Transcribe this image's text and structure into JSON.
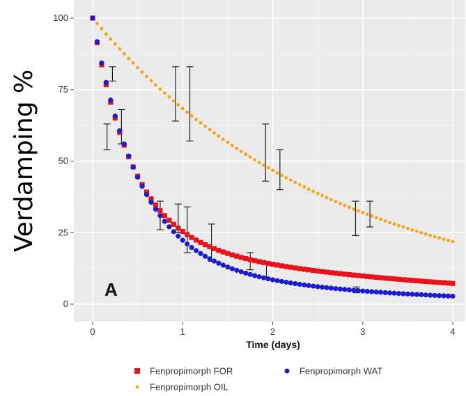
{
  "chart_data": {
    "type": "scatter",
    "title": "",
    "xlabel": "Time (days)",
    "ylabel": "Verdamping %",
    "panel_label": "A",
    "xlim": [
      -0.2,
      4.1
    ],
    "ylim": [
      -3,
      103
    ],
    "x_ticks": [
      0,
      1,
      2,
      3,
      4
    ],
    "x_tick_labels": [
      "0",
      "1",
      "2",
      "3",
      "4"
    ],
    "y_ticks": [
      0,
      25,
      50,
      75,
      100
    ],
    "y_tick_labels": [
      "0",
      "25",
      "50",
      "75",
      "100"
    ],
    "grid": true,
    "legend_position": "bottom",
    "series": [
      {
        "name": "Fenpropimorph FOR",
        "color": "#e8141c",
        "marker": "square",
        "model": "biexponential",
        "params": {
          "a": 76,
          "k1": 2.3,
          "b": 24,
          "k2": 0.3
        }
      },
      {
        "name": "Fenpropimorph WAT",
        "color": "#1c1ccc",
        "marker": "circle",
        "model": "biexponential",
        "params": {
          "a": 82,
          "k1": 2.0,
          "b": 18,
          "k2": 0.47
        }
      },
      {
        "name": "Fenpropimorph OIL",
        "color": "#f5a21c",
        "marker": "circle-small",
        "model": "exponential",
        "params": {
          "a": 100,
          "k1": 0.38
        }
      }
    ],
    "error_bars": [
      {
        "x": 0.16,
        "low": 54,
        "high": 63
      },
      {
        "x": 0.22,
        "low": 78,
        "high": 83
      },
      {
        "x": 0.32,
        "low": 56,
        "high": 68
      },
      {
        "x": 0.92,
        "low": 64,
        "high": 83
      },
      {
        "x": 1.08,
        "low": 57,
        "high": 83
      },
      {
        "x": 0.75,
        "low": 26,
        "high": 36
      },
      {
        "x": 0.95,
        "low": 25,
        "high": 35
      },
      {
        "x": 1.05,
        "low": 18,
        "high": 34
      },
      {
        "x": 1.32,
        "low": 15,
        "high": 28
      },
      {
        "x": 1.75,
        "low": 12,
        "high": 18
      },
      {
        "x": 1.92,
        "low": 43,
        "high": 63
      },
      {
        "x": 1.93,
        "low": 9,
        "high": 14
      },
      {
        "x": 2.08,
        "low": 40,
        "high": 54
      },
      {
        "x": 2.92,
        "low": 24,
        "high": 36
      },
      {
        "x": 2.93,
        "low": 4,
        "high": 6
      },
      {
        "x": 3.08,
        "low": 27,
        "high": 36
      }
    ]
  }
}
